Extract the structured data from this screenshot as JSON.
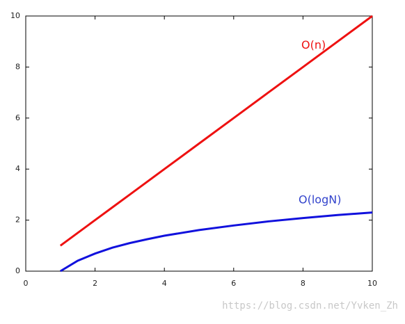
{
  "chart_data": {
    "type": "line",
    "x": [
      1,
      1.5,
      2,
      2.5,
      3,
      3.5,
      4,
      5,
      6,
      7,
      8,
      9,
      10
    ],
    "series": [
      {
        "name": "O(n)",
        "color": "#ee1111",
        "values": [
          1,
          1.5,
          2,
          2.5,
          3,
          3.5,
          4,
          5,
          6,
          7,
          8,
          9,
          10
        ]
      },
      {
        "name": "O(logN)",
        "color": "#1111dd",
        "values": [
          0,
          0.41,
          0.69,
          0.92,
          1.1,
          1.25,
          1.39,
          1.61,
          1.79,
          1.95,
          2.08,
          2.2,
          2.3
        ]
      }
    ],
    "xlim": [
      0,
      10
    ],
    "xticks": [
      0,
      2,
      4,
      6,
      8,
      10
    ],
    "ylim": [
      0,
      10
    ],
    "yticks": [
      0,
      2,
      4,
      6,
      8,
      10
    ],
    "label_colors": [
      "#ee1111",
      "#3344cc"
    ],
    "watermark": "https://blog.csdn.net/Yvken_Zh"
  }
}
